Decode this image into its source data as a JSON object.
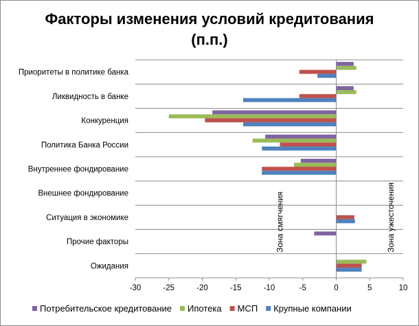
{
  "chart_data": {
    "type": "bar",
    "orientation": "horizontal",
    "title_line1": "Факторы изменения условий кредитования",
    "title_line2": "(п.п.)",
    "categories": [
      "Приоритеты в политике банка",
      "Ликвидность в банке",
      "Конкуренция",
      "Политика Банка России",
      "Внутреннее фондирование",
      "Внешнее фондирование",
      "Ситуация в экономике",
      "Прочие факторы",
      "Ожидания"
    ],
    "series": [
      {
        "name": "Потребительское кредитование",
        "color": "#8064a2",
        "values": [
          2.6,
          2.6,
          -18.5,
          -10.6,
          -5.3,
          0,
          0,
          -3.3,
          0
        ]
      },
      {
        "name": "Ипотека",
        "color": "#9bbb59",
        "values": [
          3.0,
          3.0,
          -25.0,
          -12.5,
          -6.3,
          0,
          0,
          0,
          4.5
        ]
      },
      {
        "name": "МСП",
        "color": "#c0504d",
        "values": [
          -5.5,
          -5.5,
          -19.6,
          -8.4,
          -11.1,
          0,
          2.7,
          0,
          3.8
        ]
      },
      {
        "name": "Крупные компании",
        "color": "#4f81bd",
        "values": [
          -2.8,
          -13.9,
          -13.9,
          -11.1,
          -11.1,
          0,
          2.8,
          0,
          3.8
        ]
      }
    ],
    "xlim": [
      -30,
      10
    ],
    "xticks": [
      -30,
      -25,
      -20,
      -15,
      -10,
      -5,
      0,
      5,
      10
    ],
    "annotations": {
      "easing": "Зона смягчения",
      "tightening": "Зона ужесточения"
    },
    "legend_position": "bottom",
    "grid": "horizontal category separators"
  }
}
